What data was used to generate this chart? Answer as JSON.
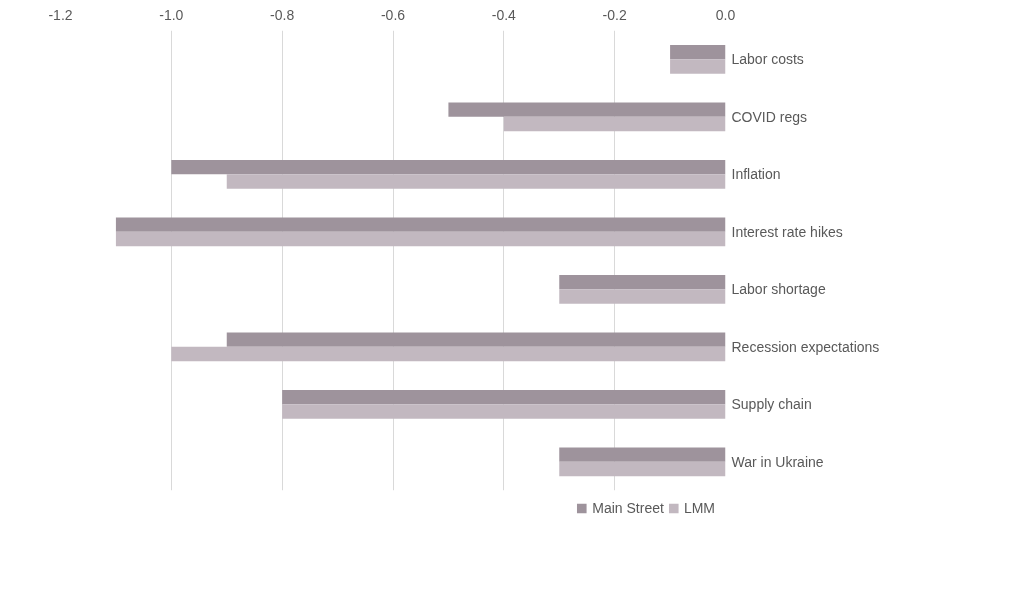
{
  "chart_data": {
    "type": "bar",
    "orientation": "horizontal",
    "categories": [
      "Labor costs",
      "COVID regs",
      "Inflation",
      "Interest rate hikes",
      "Labor shortage",
      "Recession expectations",
      "Supply chain",
      "War in Ukraine"
    ],
    "series": [
      {
        "name": "Main Street",
        "color": "#9e939c",
        "values": [
          -0.1,
          -0.5,
          -1.0,
          -1.1,
          -0.3,
          -0.9,
          -0.8,
          -0.3
        ]
      },
      {
        "name": "LMM",
        "color": "#c2b8c0",
        "values": [
          -0.1,
          -0.4,
          -0.9,
          -1.1,
          -0.3,
          -1.0,
          -0.8,
          -0.3
        ]
      }
    ],
    "xlim": [
      -1.2,
      0
    ],
    "xticks": [
      -1.2,
      {
        "value": -1.0,
        "label": "-1.0"
      },
      -0.8,
      -0.6,
      -0.4,
      -0.2,
      {
        "value": 0,
        "label": "0.0"
      }
    ],
    "grid": "x",
    "legend": "bottom"
  }
}
